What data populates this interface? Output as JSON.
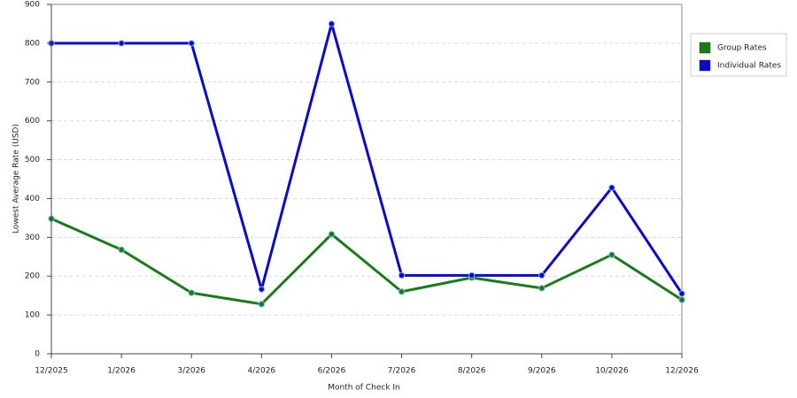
{
  "chart_data": {
    "type": "line",
    "x_label": "Month of Check In",
    "y_label": "Lowest Average Rate (USD)",
    "categories": [
      "12/2025",
      "1/2026",
      "3/2026",
      "4/2026",
      "6/2026",
      "7/2026",
      "8/2026",
      "9/2026",
      "10/2026",
      "12/2026"
    ],
    "series": [
      {
        "name": "Group Rates",
        "color": "#167d16",
        "values": [
          348,
          268,
          157,
          128,
          308,
          160,
          196,
          169,
          255,
          139
        ]
      },
      {
        "name": "Individual Rates",
        "color": "#0a0acc",
        "values": [
          800,
          800,
          800,
          166,
          850,
          202,
          202,
          202,
          428,
          155
        ]
      }
    ],
    "ylim": [
      0,
      900
    ],
    "yticks": [
      0,
      100,
      200,
      300,
      400,
      500,
      600,
      700,
      800,
      900
    ],
    "grid": true,
    "legend": "right"
  }
}
